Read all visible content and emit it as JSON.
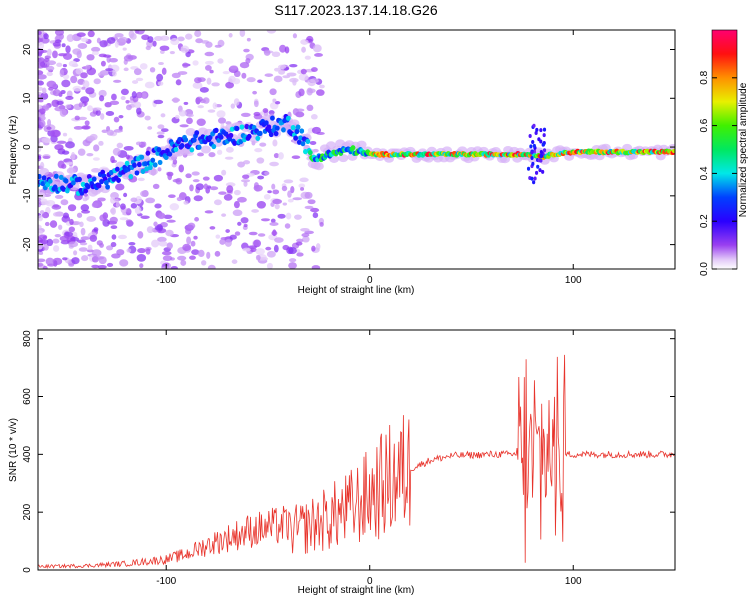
{
  "figure": {
    "title": "S117.2023.137.14.18.G26"
  },
  "chart_data": [
    {
      "type": "heatmap",
      "xlabel": "Height of straight line (km)",
      "ylabel": "Frequency (Hz)",
      "xlim": [
        -163,
        150
      ],
      "ylim": [
        -25,
        24
      ],
      "xticks": [
        -100,
        0,
        100
      ],
      "xtick_labels": [
        "-100",
        "0",
        "100"
      ],
      "yticks": [
        -20,
        -10,
        0,
        10,
        20
      ],
      "ytick_labels": [
        "-20",
        "-10",
        "0",
        "10",
        "20"
      ],
      "colorbar": {
        "label": "Normalized spectral amplitude",
        "range": [
          0,
          1
        ],
        "ticks": [
          0.0,
          0.2,
          0.4,
          0.6,
          0.8
        ],
        "tick_labels": [
          "0.0",
          "0.2",
          "0.4",
          "0.6",
          "0.8"
        ]
      },
      "ridge": {
        "x": [
          -160,
          -140,
          -125,
          -110,
          -100,
          -90,
          -80,
          -65,
          -50,
          -40,
          -33,
          -28,
          -20,
          -10,
          0,
          20,
          50,
          65,
          75,
          80,
          85,
          90,
          100,
          120,
          150
        ],
        "frequency": [
          -7,
          -8,
          -6,
          -3,
          -1,
          1,
          1.5,
          2.5,
          4,
          5,
          2,
          -2.5,
          -1.5,
          -0.5,
          -1.5,
          -1.5,
          -1.5,
          -1.5,
          -1.5,
          -1.5,
          -2,
          -1.5,
          -1,
          -1,
          -1
        ]
      },
      "grid": false,
      "legend": "colorbar-right"
    },
    {
      "type": "line",
      "xlabel": "Height of straight line (km)",
      "ylabel": "SNR (10 * v/v)",
      "xlim": [
        -163,
        150
      ],
      "ylim": [
        0,
        830
      ],
      "xticks": [
        -100,
        0,
        100
      ],
      "xtick_labels": [
        "-100",
        "0",
        "100"
      ],
      "yticks": [
        0,
        200,
        400,
        600,
        800
      ],
      "ytick_labels": [
        "0",
        "200",
        "400",
        "600",
        "800"
      ],
      "color": "#e8342c",
      "envelope": {
        "x": [
          -163,
          -140,
          -120,
          -100,
          -90,
          -80,
          -60,
          -40,
          -30,
          -20,
          -10,
          0,
          10,
          20,
          30,
          40,
          60,
          70,
          75,
          80,
          85,
          90,
          95,
          100,
          120,
          150
        ],
        "y": [
          10,
          12,
          18,
          30,
          45,
          70,
          110,
          130,
          150,
          180,
          210,
          260,
          310,
          350,
          380,
          395,
          400,
          400,
          400,
          400,
          400,
          400,
          400,
          400,
          400,
          400
        ]
      },
      "grid": false,
      "legend": "none"
    }
  ]
}
